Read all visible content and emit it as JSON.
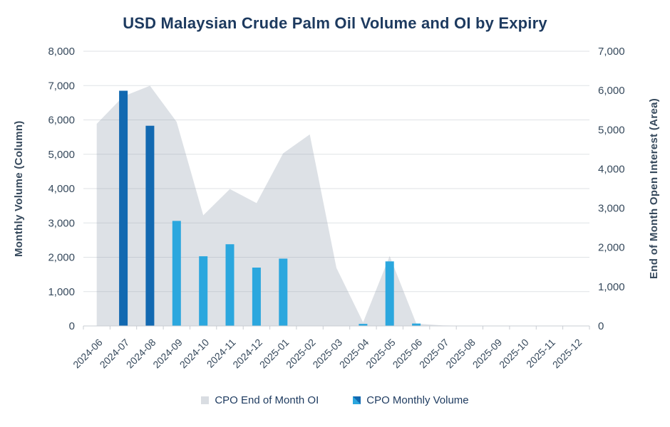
{
  "title": "USD Malaysian Crude Palm Oil Volume and OI by Expiry",
  "axes": {
    "left_title": "Monthly Volume (Column)",
    "right_title": "End of Month Open Interest (Area)"
  },
  "legend": {
    "items": [
      {
        "label": "CPO End of Month OI",
        "series": "area",
        "swatch_color": "#d9dde2"
      },
      {
        "label": "CPO Monthly Volume",
        "series": "bar",
        "swatch_colors": [
          "#2ba7de",
          "#1269b1"
        ]
      }
    ]
  },
  "colors": {
    "title_text": "#1d3a5f",
    "axis_text": "#36495c",
    "bar_dark": "#1269b1",
    "bar_light": "#2ba7de",
    "area_fill": "#dde1e6",
    "gridline": "rgba(150,160,173,0.30)",
    "axis_line": "#c9cdd3",
    "background": "#ffffff"
  },
  "chart_data": {
    "type": "combo",
    "title": "USD Malaysian Crude Palm Oil Volume and OI by Expiry",
    "categories": [
      "2024-06",
      "2024-07",
      "2024-08",
      "2024-09",
      "2024-10",
      "2024-11",
      "2024-12",
      "2025-01",
      "2025-02",
      "2025-03",
      "2025-04",
      "2025-05",
      "2025-06",
      "2025-07",
      "2025-08",
      "2025-09",
      "2025-10",
      "2025-11",
      "2025-12"
    ],
    "series": [
      {
        "name": "CPO End of Month OI",
        "type": "area",
        "axis": "right",
        "values": [
          5150,
          5850,
          6120,
          5200,
          2820,
          3490,
          3130,
          4400,
          4880,
          1480,
          90,
          1780,
          60,
          15,
          0,
          0,
          0,
          0,
          0
        ]
      },
      {
        "name": "CPO Monthly Volume",
        "type": "bar",
        "axis": "left",
        "values": [
          0,
          6850,
          5830,
          3060,
          2030,
          2380,
          1700,
          1960,
          0,
          0,
          60,
          1880,
          70,
          0,
          0,
          0,
          0,
          0,
          0
        ],
        "dark_categories": [
          "2024-07",
          "2024-08"
        ]
      }
    ],
    "ylabel_left": "Monthly Volume (Column)",
    "ylabel_right": "End of Month Open Interest (Area)",
    "ylim_left": [
      0,
      8000
    ],
    "ylim_right": [
      0,
      7000
    ],
    "ytick_step": 1000,
    "grid": true,
    "legend_position": "bottom"
  }
}
